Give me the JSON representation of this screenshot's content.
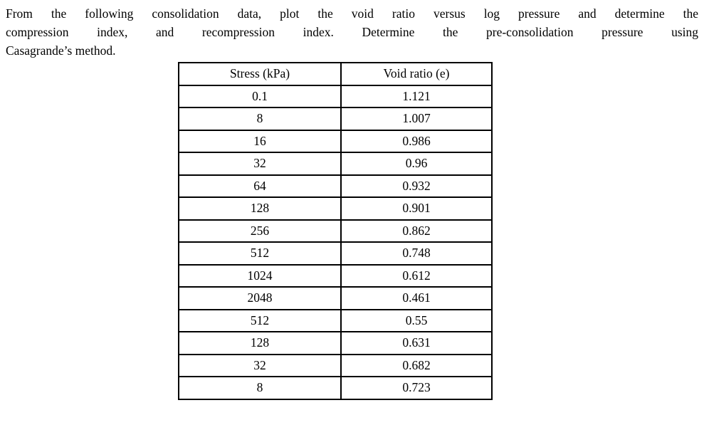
{
  "page": {
    "background_color": "#ffffff",
    "text_color": "#000000"
  },
  "problem": {
    "full_text": "From the following consolidation data, plot the void ratio versus log pressure and determine the compression index, and recompression index. Determine the pre-consolidation pressure using Casagrande’s method.",
    "lines": [
      "From the following consolidation data, plot the void ratio versus log pressure and determine the",
      "compression index, and recompression index. Determine the pre-consolidation pressure using",
      "Casagrande’s method."
    ]
  },
  "table": {
    "columns": [
      "Stress (kPa)",
      "Void ratio (e)"
    ],
    "rows": [
      {
        "stress": "0.1",
        "void_ratio": "1.121"
      },
      {
        "stress": "8",
        "void_ratio": "1.007"
      },
      {
        "stress": "16",
        "void_ratio": "0.986"
      },
      {
        "stress": "32",
        "void_ratio": "0.96"
      },
      {
        "stress": "64",
        "void_ratio": "0.932"
      },
      {
        "stress": "128",
        "void_ratio": "0.901"
      },
      {
        "stress": "256",
        "void_ratio": "0.862"
      },
      {
        "stress": "512",
        "void_ratio": "0.748"
      },
      {
        "stress": "1024",
        "void_ratio": "0.612"
      },
      {
        "stress": "2048",
        "void_ratio": "0.461"
      },
      {
        "stress": "512",
        "void_ratio": "0.55"
      },
      {
        "stress": "128",
        "void_ratio": "0.631"
      },
      {
        "stress": "32",
        "void_ratio": "0.682"
      },
      {
        "stress": "8",
        "void_ratio": "0.723"
      }
    ]
  }
}
